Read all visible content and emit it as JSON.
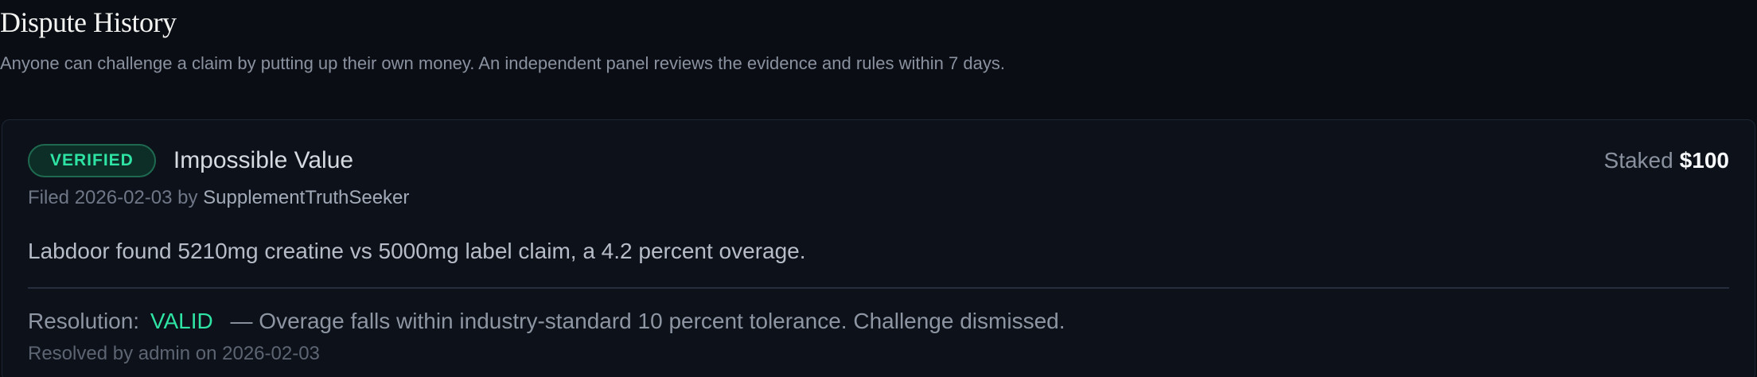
{
  "page": {
    "title": "Dispute History",
    "subtitle": "Anyone can challenge a claim by putting up their own money. An independent panel reviews the evidence and rules within 7 days."
  },
  "dispute": {
    "status_badge": "VERIFIED",
    "claim_title": "Impossible Value",
    "staked_label": "Staked",
    "staked_amount": "$100",
    "filed_line_muted": "Filed 2026-02-03 by",
    "filed_by": "SupplementTruthSeeker",
    "claim_text": "Labdoor found 5210mg creatine vs 5000mg label claim, a 4.2 percent overage.",
    "resolution_label": "Resolution:",
    "resolution_verdict": "VALID",
    "resolution_text": "— Overage falls within industry-standard 10 percent tolerance. Challenge dismissed.",
    "resolved_note": "Resolved by admin on 2026-02-03"
  },
  "colors": {
    "page_bg": "#0a0d14",
    "card_bg": "#0d1119",
    "card_border": "#1e2533",
    "accent_green": "#2ee3a3",
    "badge_bg": "#0c2e26",
    "badge_border": "#1e6950"
  }
}
